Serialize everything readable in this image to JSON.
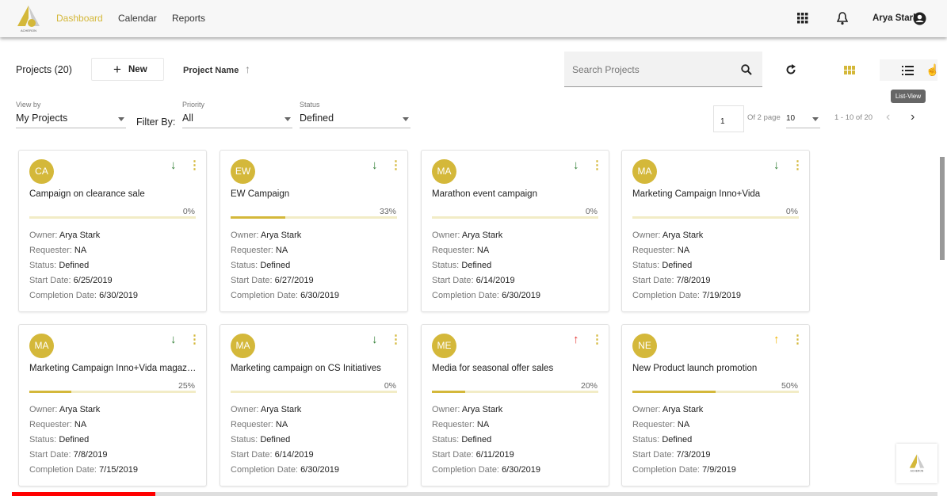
{
  "header": {
    "logo_text": "ACHERON",
    "nav": [
      "Dashboard",
      "Calendar",
      "Reports"
    ],
    "active": "Dashboard",
    "user": "Arya Stark"
  },
  "toolbar": {
    "projects_label": "Projects (20)",
    "new_label": "New",
    "sort_label": "Project Name",
    "search_placeholder": "Search Projects",
    "tooltip": "List-View"
  },
  "filters": {
    "view_by_label": "View by",
    "view_by_value": "My Projects",
    "filter_by_label": "Filter By:",
    "priority_label": "Priority",
    "priority_value": "All",
    "status_label": "Status",
    "status_value": "Defined"
  },
  "pagination": {
    "page": "1",
    "of_pages": "Of 2 page",
    "page_size": "10",
    "range": "1 - 10 of 20"
  },
  "labels": {
    "owner": "Owner:",
    "requester": "Requester:",
    "status": "Status:",
    "start": "Start Date:",
    "completion": "Completion Date:"
  },
  "colors": {
    "accent": "#d4b83a",
    "down": "#2e7d32",
    "up_high": "#e53935",
    "up_med": "#f0b400"
  },
  "projects": [
    {
      "initials": "CA",
      "name": "Campaign on clearance sale",
      "progress": 0,
      "pct": "0%",
      "priority": "down",
      "owner": "Arya Stark",
      "requester": "NA",
      "status": "Defined",
      "start": "6/25/2019",
      "completion": "6/30/2019"
    },
    {
      "initials": "EW",
      "name": "EW Campaign",
      "progress": 33,
      "pct": "33%",
      "priority": "down",
      "owner": "Arya Stark",
      "requester": "NA",
      "status": "Defined",
      "start": "6/27/2019",
      "completion": "6/30/2019"
    },
    {
      "initials": "MA",
      "name": "Marathon event campaign",
      "progress": 0,
      "pct": "0%",
      "priority": "down",
      "owner": "Arya Stark",
      "requester": "NA",
      "status": "Defined",
      "start": "6/14/2019",
      "completion": "6/30/2019"
    },
    {
      "initials": "MA",
      "name": "Marketing Campaign Inno+Vida",
      "progress": 0,
      "pct": "0%",
      "priority": "down",
      "owner": "Arya Stark",
      "requester": "NA",
      "status": "Defined",
      "start": "7/8/2019",
      "completion": "7/19/2019"
    },
    {
      "initials": "MA",
      "name": "Marketing Campaign Inno+Vida magazine",
      "progress": 25,
      "pct": "25%",
      "priority": "down",
      "owner": "Arya Stark",
      "requester": "NA",
      "status": "Defined",
      "start": "7/8/2019",
      "completion": "7/15/2019"
    },
    {
      "initials": "MA",
      "name": "Marketing campaign on CS Initiatives",
      "progress": 0,
      "pct": "0%",
      "priority": "down",
      "owner": "Arya Stark",
      "requester": "NA",
      "status": "Defined",
      "start": "6/14/2019",
      "completion": "6/30/2019"
    },
    {
      "initials": "ME",
      "name": "Media for seasonal offer sales",
      "progress": 20,
      "pct": "20%",
      "priority": "up_high",
      "owner": "Arya Stark",
      "requester": "NA",
      "status": "Defined",
      "start": "6/11/2019",
      "completion": "6/30/2019"
    },
    {
      "initials": "NE",
      "name": "New Product launch promotion",
      "progress": 50,
      "pct": "50%",
      "priority": "up_med",
      "owner": "Arya Stark",
      "requester": "NA",
      "status": "Defined",
      "start": "7/3/2019",
      "completion": "7/9/2019"
    }
  ],
  "video_progress": 0.155
}
